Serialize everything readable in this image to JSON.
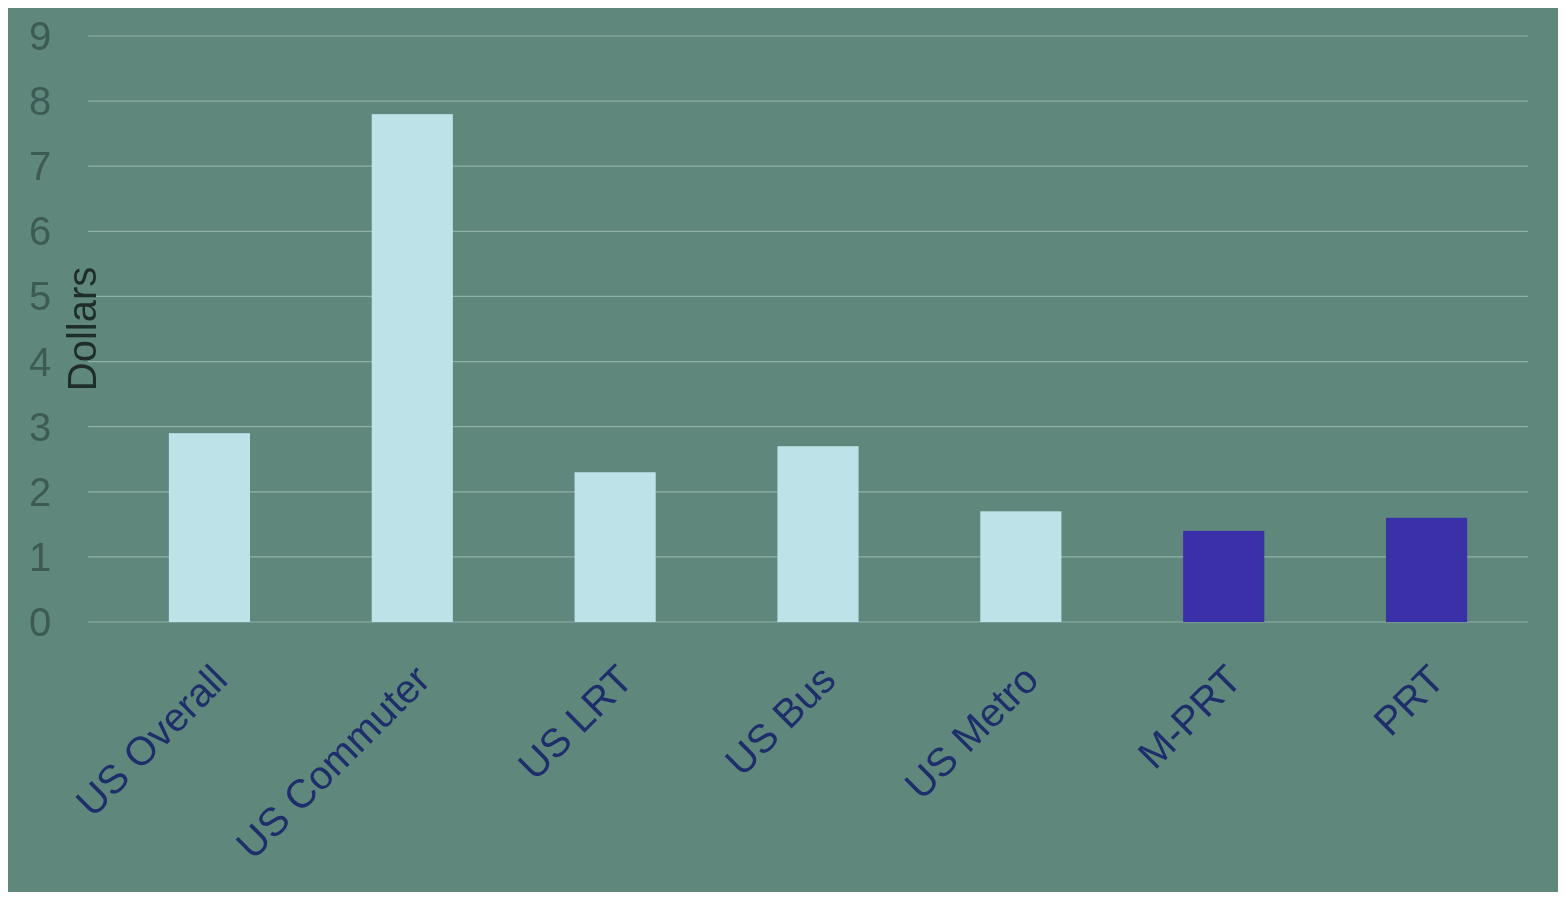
{
  "chart_data": {
    "type": "bar",
    "ylabel": "Dollars",
    "categories": [
      "US Overall",
      "US Commuter",
      "US LRT",
      "US Bus",
      "US Metro",
      "M-PRT",
      "PRT"
    ],
    "values": [
      2.9,
      7.8,
      2.3,
      2.7,
      1.7,
      1.4,
      1.6
    ],
    "colors": [
      "#bde3e8",
      "#bde3e8",
      "#bde3e8",
      "#bde3e8",
      "#bde3e8",
      "#3a30a8",
      "#3a30a8"
    ],
    "ylim": [
      0,
      9
    ],
    "yticks": [
      0,
      1,
      2,
      3,
      4,
      5,
      6,
      7,
      8,
      9
    ],
    "grid": "y"
  }
}
